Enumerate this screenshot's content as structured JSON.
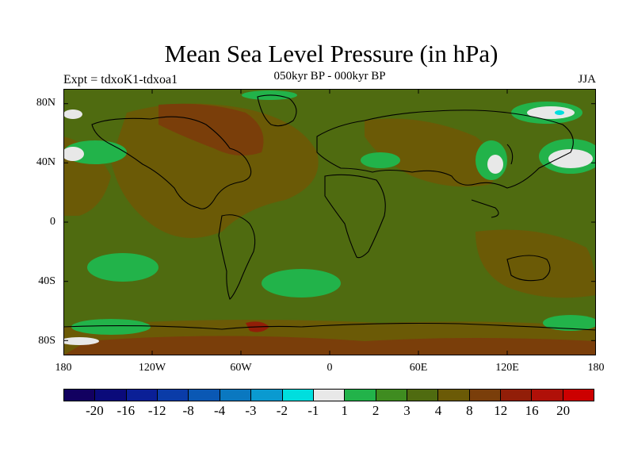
{
  "title": "Mean Sea Level Pressure (in hPa)",
  "subtitle": "050kyr BP - 000kyr BP",
  "experiment": "Expt = tdxoK1-tdxoa1",
  "season": "JJA",
  "lat_labels": [
    "80N",
    "40N",
    "0",
    "40S",
    "80S"
  ],
  "lon_labels": [
    "180",
    "120W",
    "60W",
    "0",
    "60E",
    "120E",
    "180"
  ],
  "colorbar": {
    "colors": [
      "#120060",
      "#0a0a7a",
      "#0a1f96",
      "#0a3ca8",
      "#0a58b4",
      "#0a78c0",
      "#0a9ad0",
      "#00dede",
      "#e8e8e8",
      "#22b34a",
      "#3f8c20",
      "#4f6b10",
      "#6b5a06",
      "#7a3e0a",
      "#921e08",
      "#b01008",
      "#cc0000"
    ],
    "labels": [
      "-20",
      "-16",
      "-12",
      "-8",
      "-4",
      "-3",
      "-2",
      "-1",
      "1",
      "2",
      "3",
      "4",
      "8",
      "12",
      "16",
      "20"
    ]
  }
}
